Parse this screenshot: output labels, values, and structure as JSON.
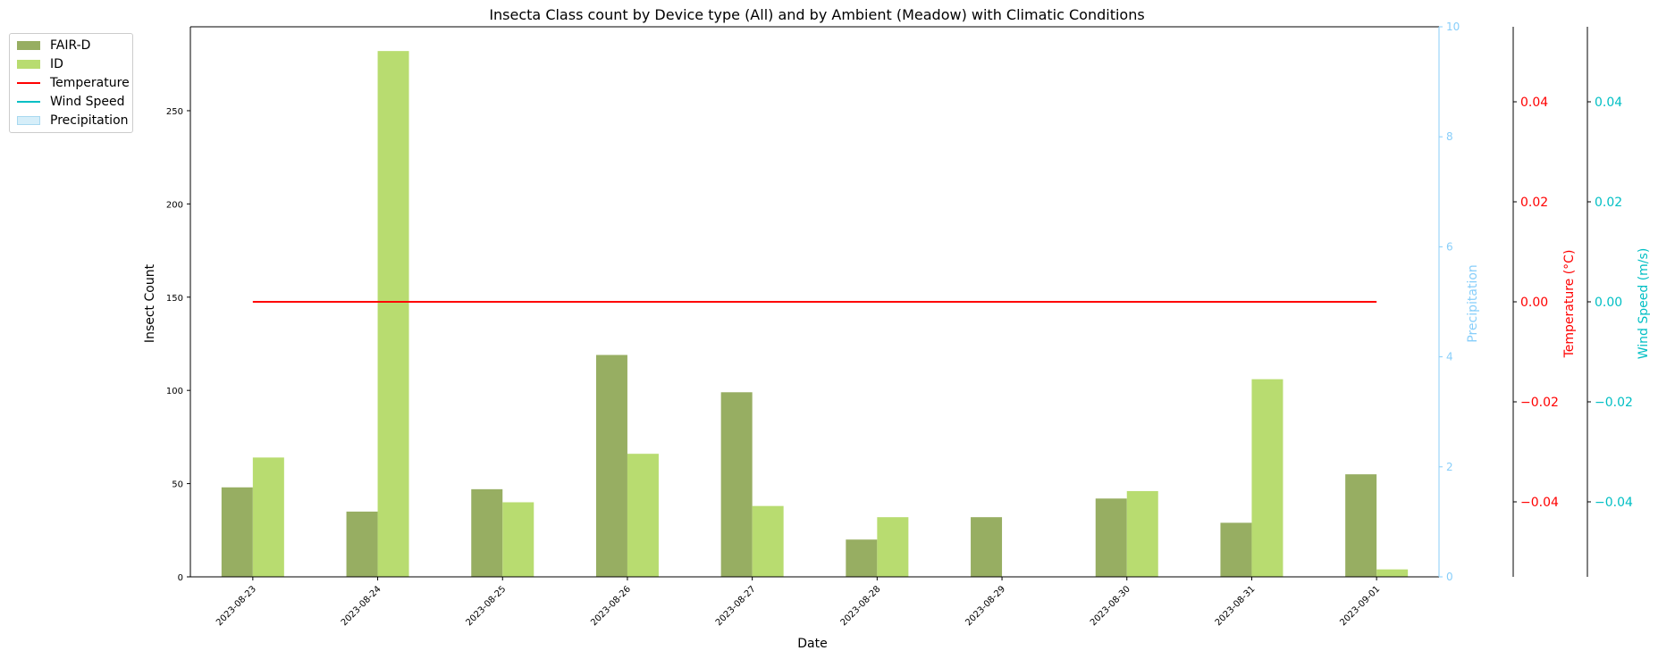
{
  "chart_data": {
    "type": "bar",
    "title": "Insecta Class count by Device type (All) and by Ambient (Meadow) with Climatic Conditions",
    "xlabel": "Date",
    "ylabel": "Insect Count",
    "categories": [
      "2023-08-23",
      "2023-08-24",
      "2023-08-25",
      "2023-08-26",
      "2023-08-27",
      "2023-08-28",
      "2023-08-29",
      "2023-08-30",
      "2023-08-31",
      "2023-09-01"
    ],
    "series": [
      {
        "name": "FAIR-D",
        "color": "#97ae62",
        "values": [
          48,
          35,
          47,
          119,
          99,
          20,
          32,
          42,
          29,
          55
        ]
      },
      {
        "name": "ID",
        "color": "#b8dc70",
        "values": [
          64,
          282,
          40,
          66,
          38,
          32,
          0,
          46,
          106,
          4
        ]
      }
    ],
    "ylim": [
      0,
      295
    ],
    "yticks": [
      0,
      50,
      100,
      150,
      200,
      250
    ],
    "temperature": {
      "name": "Temperature",
      "color": "#ff0000",
      "values": [
        0,
        0,
        0,
        0,
        0,
        0,
        0,
        0,
        0,
        0
      ],
      "axis_label": "Temperature (°C)",
      "ylim": [
        -0.055,
        0.055
      ],
      "ticks": [
        "0.04",
        "0.02",
        "0.00",
        "−0.02",
        "−0.04"
      ]
    },
    "wind": {
      "name": "Wind Speed",
      "color": "#00bfc4",
      "axis_label": "Wind Speed (m/s)",
      "ylim": [
        -0.055,
        0.055
      ],
      "ticks": [
        "0.04",
        "0.02",
        "0.00",
        "−0.02",
        "−0.04"
      ]
    },
    "precipitation": {
      "name": "Precipitation",
      "color": "#87cefa",
      "axis_label": "Precipitation",
      "ylim": [
        0,
        10
      ],
      "ticks": [
        "0",
        "2",
        "4",
        "6",
        "8",
        "10"
      ]
    },
    "legend_position": "outside-top-left"
  }
}
